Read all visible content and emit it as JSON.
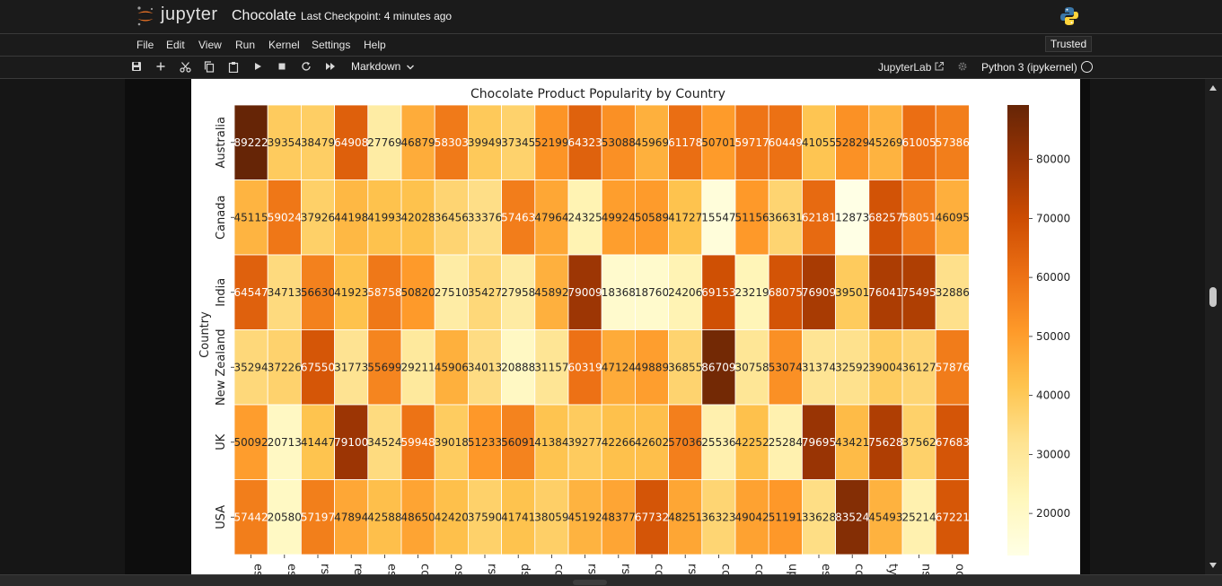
{
  "header": {
    "brand": "jupyter",
    "notebook_title": "Chocolate",
    "checkpoint": "Last Checkpoint: 4 minutes ago"
  },
  "menu": [
    "File",
    "Edit",
    "View",
    "Run",
    "Kernel",
    "Settings",
    "Help"
  ],
  "trusted_label": "Trusted",
  "toolbar": {
    "cell_type": "Markdown",
    "jupyterlab_label": "JupyterLab",
    "kernel_name": "Python 3 (ipykernel)"
  },
  "icons": [
    "jupyter-logo-icon",
    "python-logo-icon",
    "save-icon",
    "add-cell-icon",
    "cut-icon",
    "copy-icon",
    "paste-icon",
    "run-icon",
    "stop-icon",
    "restart-icon",
    "fast-forward-icon",
    "chevron-down-icon",
    "external-link-icon",
    "gear-icon",
    "kernel-status-icon"
  ],
  "colors": {
    "accent_orange": "#f37626",
    "heat_low": "#ffffcc",
    "heat_high": "#662506"
  },
  "chart_data": {
    "type": "heatmap",
    "title": "Chocolate Product Popularity by Country",
    "ylabel": "Country",
    "rows": [
      "Australia",
      "Canada",
      "India",
      "New Zealand",
      "UK",
      "USA"
    ],
    "x_tick_labels": [
      "es",
      "es",
      "rs",
      "re",
      "es",
      "co",
      "os",
      "rs",
      "ds",
      "co",
      "rs",
      "rs",
      "co",
      "rs",
      "co",
      "co",
      "up",
      "es",
      "co",
      "ty",
      "ns",
      "oc"
    ],
    "values": [
      [
        89222,
        39354,
        38479,
        64908,
        27769,
        46879,
        58303,
        39949,
        37345,
        52199,
        64323,
        53088,
        45969,
        61178,
        50701,
        59717,
        60449,
        41055,
        52829,
        45269,
        61005,
        57386
      ],
      [
        45115,
        59024,
        37926,
        44198,
        41993,
        42028,
        36456,
        33376,
        57463,
        47964,
        24325,
        49924,
        50589,
        41727,
        15547,
        51156,
        36631,
        62181,
        12873,
        68257,
        58051,
        46095
      ],
      [
        64547,
        34713,
        56630,
        41923,
        58758,
        50820,
        27510,
        35427,
        27958,
        45892,
        79009,
        18368,
        18760,
        24206,
        69153,
        23219,
        68075,
        76909,
        39501,
        76041,
        75495,
        32886
      ],
      [
        35294,
        37226,
        67550,
        31773,
        55699,
        29211,
        45906,
        34013,
        20888,
        31157,
        60319,
        47124,
        49889,
        36855,
        86709,
        30758,
        53074,
        31374,
        32592,
        39004,
        36127,
        57876
      ],
      [
        50092,
        20713,
        41447,
        79100,
        34524,
        59948,
        39018,
        51233,
        56091,
        41384,
        39277,
        42266,
        42602,
        57036,
        25536,
        42252,
        25284,
        79695,
        43421,
        75628,
        37562,
        67683
      ],
      [
        57442,
        20580,
        57197,
        47894,
        42588,
        48650,
        42420,
        37590,
        41741,
        38059,
        45192,
        48377,
        67732,
        48251,
        36323,
        49042,
        51191,
        33628,
        83524,
        45493,
        25214,
        67221
      ]
    ],
    "colorbar_ticks": [
      20000,
      30000,
      40000,
      50000,
      60000,
      70000,
      80000
    ],
    "vmin": 12873,
    "vmax": 89222,
    "colormap": "YlOrBr"
  }
}
